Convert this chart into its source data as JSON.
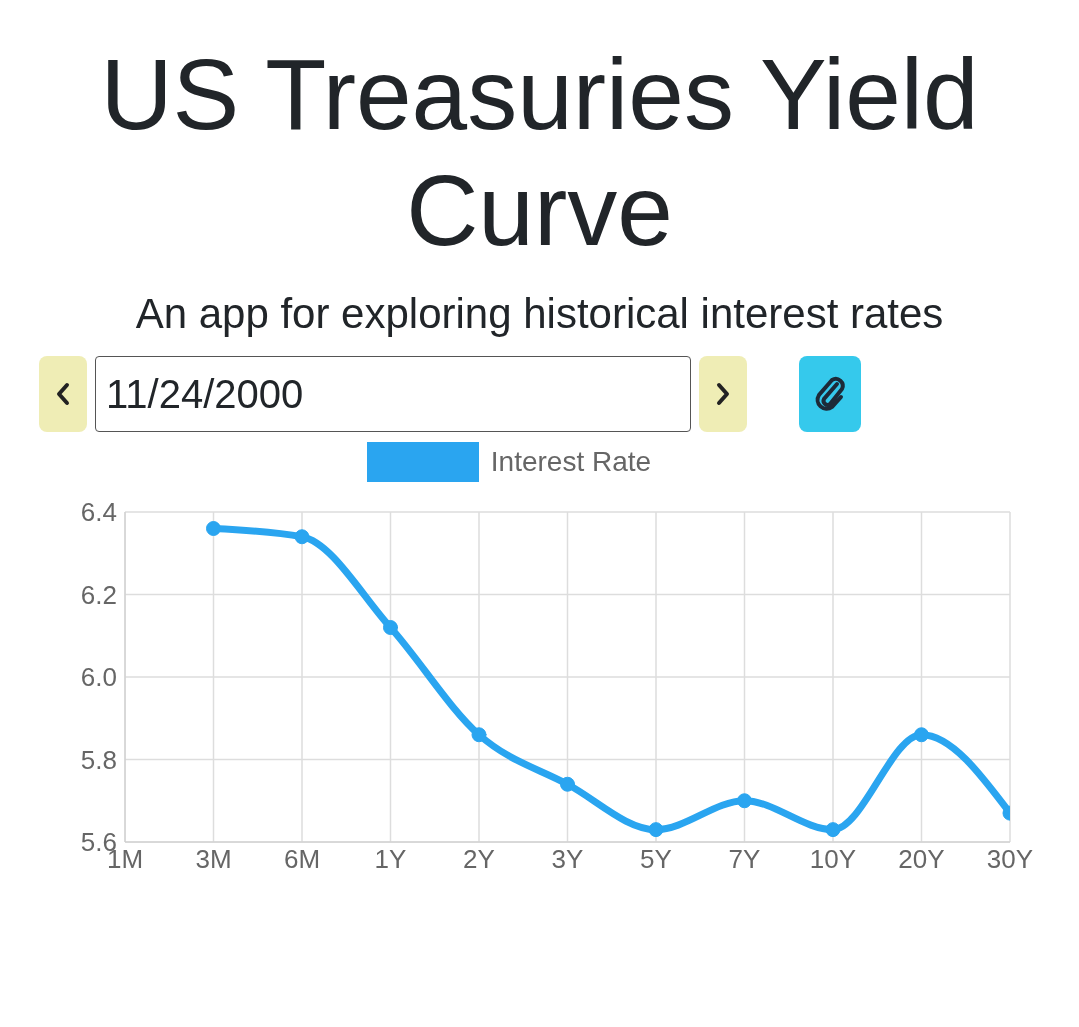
{
  "chart_data": {
    "type": "line",
    "title": "US Treasuries Yield Curve",
    "subtitle": "An app for exploring historical interest rates",
    "annotations": [
      "11/24/2000"
    ],
    "categories": [
      "1M",
      "3M",
      "6M",
      "1Y",
      "2Y",
      "3Y",
      "5Y",
      "7Y",
      "10Y",
      "20Y",
      "30Y"
    ],
    "series": [
      {
        "name": "Interest Rate",
        "color": "#2aa5f0",
        "values": [
          null,
          6.36,
          6.34,
          6.12,
          5.86,
          5.74,
          5.63,
          5.7,
          5.63,
          5.86,
          5.67
        ]
      }
    ],
    "ylim": [
      5.6,
      6.4
    ],
    "yticks": [
      {
        "value": 5.6,
        "label": "5.6"
      },
      {
        "value": 5.8,
        "label": "5.8"
      },
      {
        "value": 6,
        "label": "6.0"
      },
      {
        "value": 6.2,
        "label": "6.2"
      },
      6.4
    ],
    "grid": true,
    "legend": "top",
    "marker": "circle",
    "line_style": "solid"
  }
}
